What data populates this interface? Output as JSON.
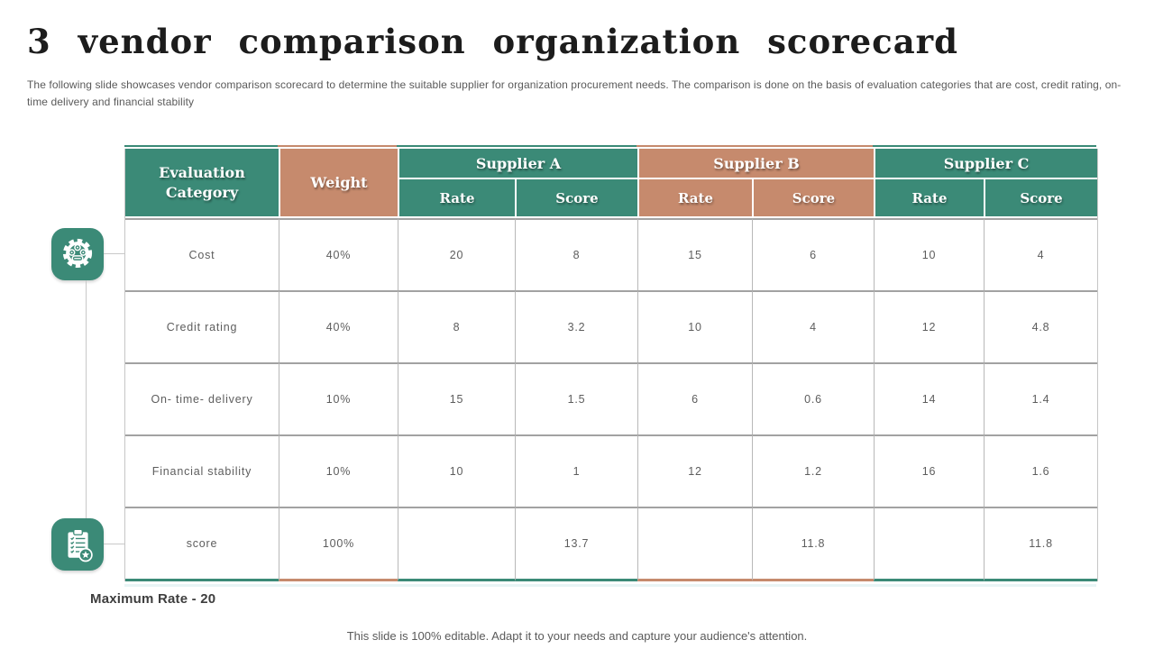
{
  "slide": {
    "title": "3 vendor comparison organization scorecard",
    "subtitle": "The following slide showcases vendor comparison scorecard to determine the suitable supplier for organization procurement needs. The comparison is done on the basis of evaluation categories that are cost, credit rating, on-time delivery and financial stability",
    "max_rate_note": "Maximum Rate - 20",
    "footer": "This slide is 100% editable. Adapt it to your needs and capture your audience's attention."
  },
  "colors": {
    "teal": "#3B8A77",
    "salmon": "#C68A6D",
    "grid": "#A2A2A2",
    "body_text": "#5D5D5D"
  },
  "icons": [
    {
      "name": "gear-icon"
    },
    {
      "name": "clipboard-star-icon"
    }
  ],
  "table": {
    "header": {
      "evaluation_category": "Evaluation Category",
      "weight": "Weight",
      "groups": [
        {
          "label": "Supplier A",
          "color": "teal",
          "sub": [
            "Rate",
            "Score"
          ]
        },
        {
          "label": "Supplier B",
          "color": "salmon",
          "sub": [
            "Rate",
            "Score"
          ]
        },
        {
          "label": "Supplier C",
          "color": "teal",
          "sub": [
            "Rate",
            "Score"
          ]
        }
      ]
    },
    "rows": [
      {
        "category": "Cost",
        "weight": "40%",
        "cells": [
          "20",
          "8",
          "15",
          "6",
          "10",
          "4"
        ]
      },
      {
        "category": "Credit rating",
        "weight": "40%",
        "cells": [
          "8",
          "3.2",
          "10",
          "4",
          "12",
          "4.8"
        ]
      },
      {
        "category": "On- time- delivery",
        "weight": "10%",
        "cells": [
          "15",
          "1.5",
          "6",
          "0.6",
          "14",
          "1.4"
        ]
      },
      {
        "category": "Financial stability",
        "weight": "10%",
        "cells": [
          "10",
          "1",
          "12",
          "1.2",
          "16",
          "1.6"
        ]
      },
      {
        "category": "score",
        "weight": "100%",
        "cells": [
          "",
          "13.7",
          "",
          "11.8",
          "",
          "11.8"
        ]
      }
    ]
  }
}
